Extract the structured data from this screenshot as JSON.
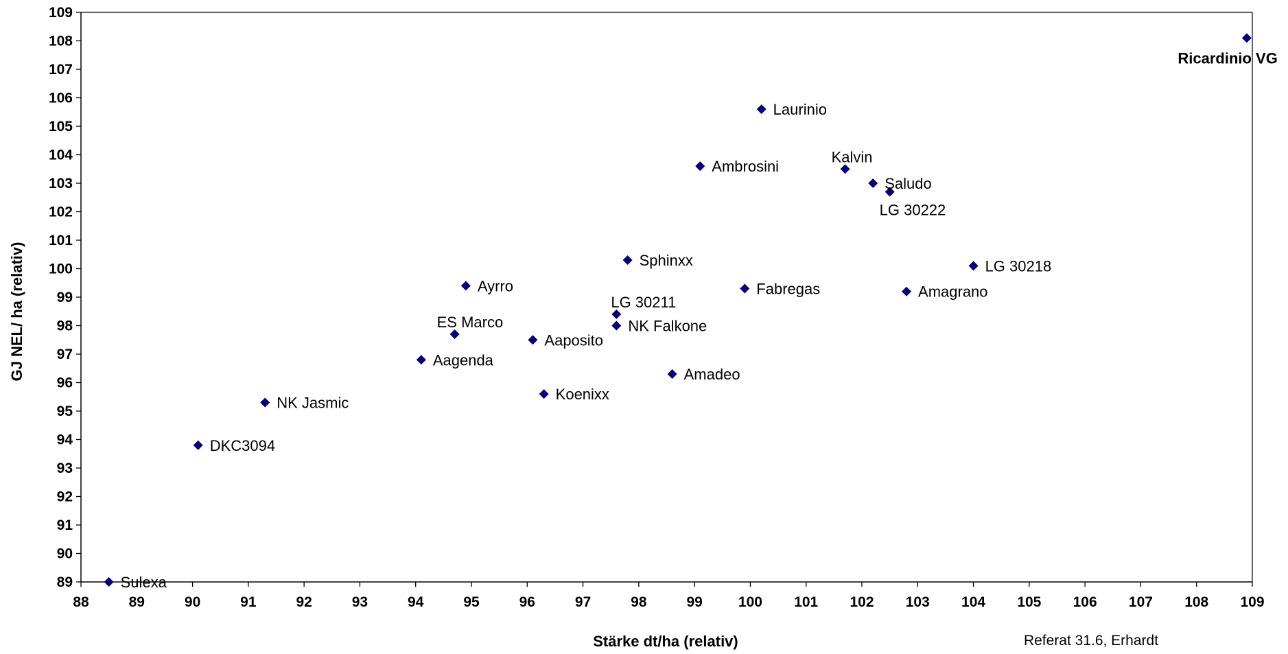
{
  "chart_data": {
    "type": "scatter",
    "xlabel": "Stärke  dt/ha (relativ)",
    "ylabel": "GJ NEL/ ha (relativ)",
    "xlim": [
      88,
      109
    ],
    "ylim": [
      89,
      109
    ],
    "x_ticks": [
      88,
      89,
      90,
      91,
      92,
      93,
      94,
      95,
      96,
      97,
      98,
      99,
      100,
      101,
      102,
      103,
      104,
      105,
      106,
      107,
      108,
      109
    ],
    "y_ticks": [
      89,
      90,
      91,
      92,
      93,
      94,
      95,
      96,
      97,
      98,
      99,
      100,
      101,
      102,
      103,
      104,
      105,
      106,
      107,
      108,
      109
    ],
    "grid": false,
    "marker": "diamond",
    "marker_color": "#000080",
    "footnote": "Referat 31.6, Erhardt",
    "points": [
      {
        "label": "Sulexa",
        "x": 88.5,
        "y": 89.0
      },
      {
        "label": "DKC3094",
        "x": 90.1,
        "y": 93.8
      },
      {
        "label": "NK Jasmic",
        "x": 91.3,
        "y": 95.3
      },
      {
        "label": "Aagenda",
        "x": 94.1,
        "y": 96.8
      },
      {
        "label": "ES Marco",
        "x": 94.7,
        "y": 97.7
      },
      {
        "label": "Ayrro",
        "x": 94.9,
        "y": 99.4
      },
      {
        "label": "Aaposito",
        "x": 96.1,
        "y": 97.5
      },
      {
        "label": "Koenixx",
        "x": 96.3,
        "y": 95.6
      },
      {
        "label": "NK Falkone",
        "x": 97.6,
        "y": 98.0
      },
      {
        "label": "LG 30211",
        "x": 97.6,
        "y": 98.4
      },
      {
        "label": "Sphinxx",
        "x": 97.8,
        "y": 100.3
      },
      {
        "label": "Amadeo",
        "x": 98.6,
        "y": 96.3
      },
      {
        "label": "Ambrosini",
        "x": 99.1,
        "y": 103.6
      },
      {
        "label": "Fabregas",
        "x": 99.9,
        "y": 99.3
      },
      {
        "label": "Laurinio",
        "x": 100.2,
        "y": 105.6
      },
      {
        "label": "Kalvin",
        "x": 101.7,
        "y": 103.5
      },
      {
        "label": "Saludo",
        "x": 102.2,
        "y": 103.0
      },
      {
        "label": "LG 30222",
        "x": 102.5,
        "y": 102.7
      },
      {
        "label": "Amagrano",
        "x": 102.8,
        "y": 99.2
      },
      {
        "label": "LG 30218",
        "x": 104.0,
        "y": 100.1
      },
      {
        "label": "Ricardinio VG",
        "x": 108.9,
        "y": 108.1,
        "bold": true
      }
    ]
  }
}
